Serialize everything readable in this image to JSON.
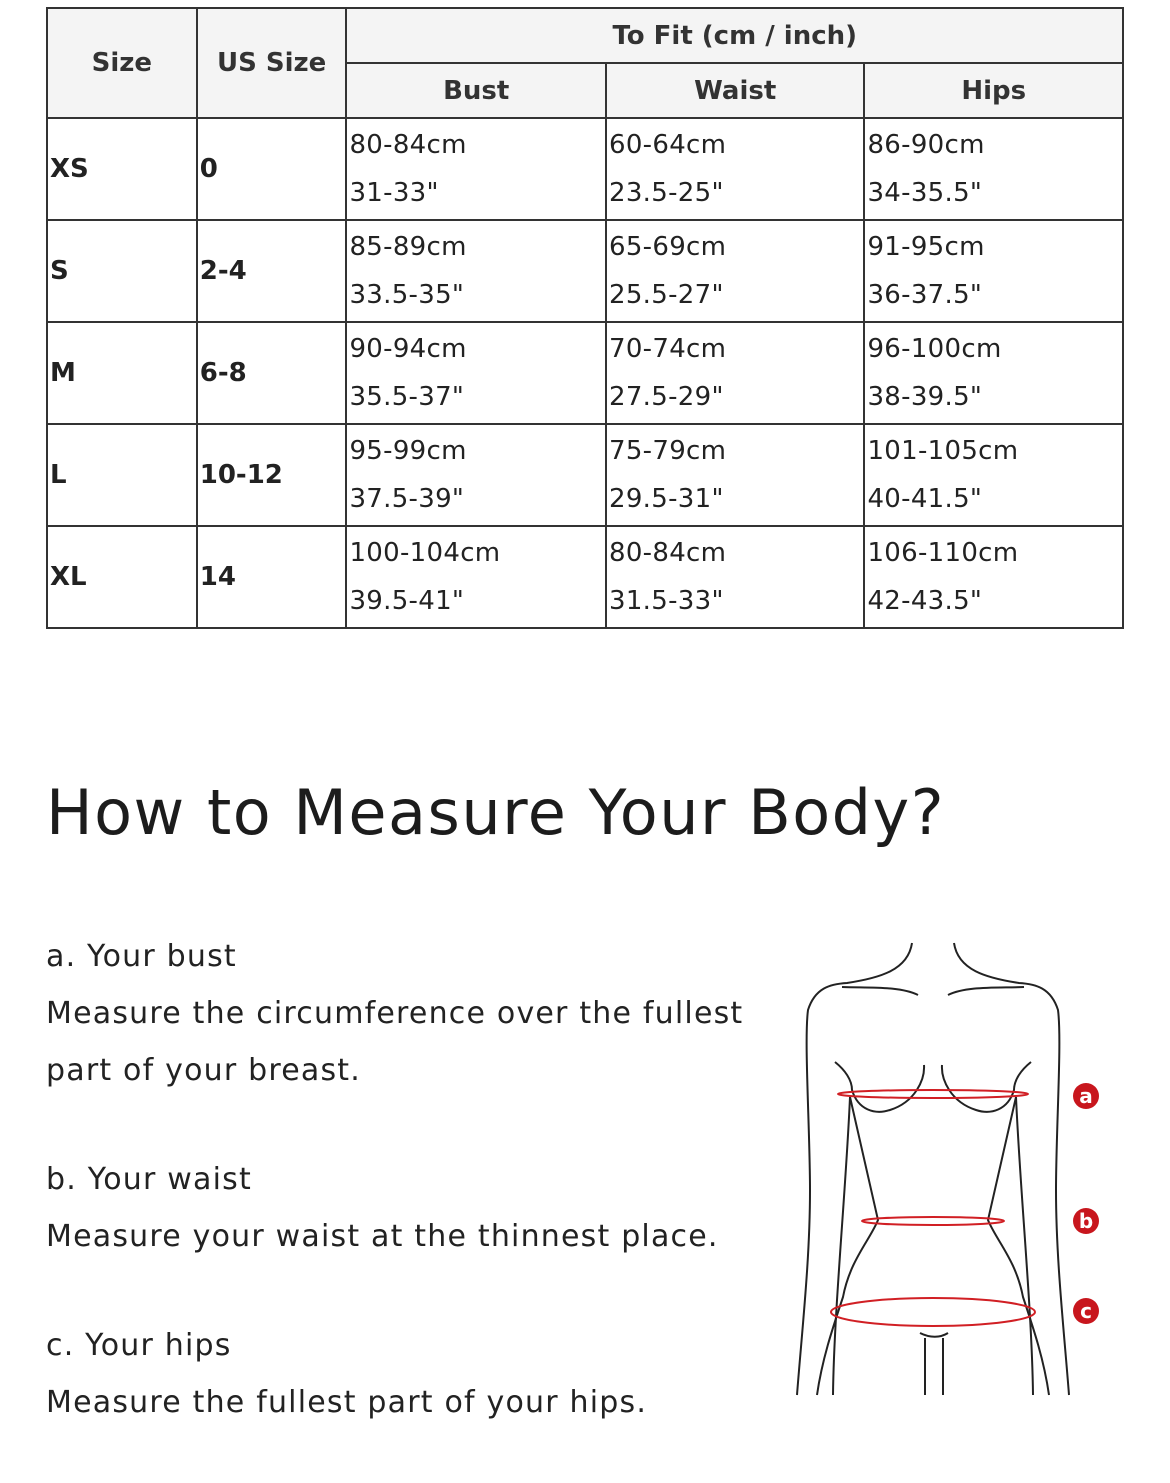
{
  "table": {
    "headers": {
      "size": "Size",
      "us_size": "US Size",
      "to_fit": "To Fit (cm / inch)",
      "bust": "Bust",
      "waist": "Waist",
      "hips": "Hips"
    },
    "rows": [
      {
        "size": "XS",
        "us": "0",
        "bust_cm": "80-84cm",
        "bust_in": "31-33\"",
        "waist_cm": "60-64cm",
        "waist_in": "23.5-25\"",
        "hips_cm": "86-90cm",
        "hips_in": "34-35.5\""
      },
      {
        "size": "S",
        "us": "2-4",
        "bust_cm": "85-89cm",
        "bust_in": "33.5-35\"",
        "waist_cm": "65-69cm",
        "waist_in": "25.5-27\"",
        "hips_cm": "91-95cm",
        "hips_in": "36-37.5\""
      },
      {
        "size": "M",
        "us": "6-8",
        "bust_cm": "90-94cm",
        "bust_in": "35.5-37\"",
        "waist_cm": "70-74cm",
        "waist_in": "27.5-29\"",
        "hips_cm": "96-100cm",
        "hips_in": "38-39.5\""
      },
      {
        "size": "L",
        "us": "10-12",
        "bust_cm": "95-99cm",
        "bust_in": "37.5-39\"",
        "waist_cm": "75-79cm",
        "waist_in": "29.5-31\"",
        "hips_cm": "101-105cm",
        "hips_in": "40-41.5\""
      },
      {
        "size": "XL",
        "us": "14",
        "bust_cm": "100-104cm",
        "bust_in": "39.5-41\"",
        "waist_cm": "80-84cm",
        "waist_in": "31.5-33\"",
        "hips_cm": "106-110cm",
        "hips_in": "42-43.5\""
      }
    ]
  },
  "measure": {
    "title": "How to Measure Your Body?",
    "steps": [
      {
        "heading": "a. Your bust",
        "text": "Measure the circumference over the fullest part of your breast."
      },
      {
        "heading": "b. Your waist",
        "text": "Measure your waist at the thinnest place."
      },
      {
        "heading": "c. Your hips",
        "text": "Measure the fullest part of your hips."
      }
    ],
    "markers": [
      "a",
      "b",
      "c"
    ],
    "accent_color": "#c8161d"
  }
}
